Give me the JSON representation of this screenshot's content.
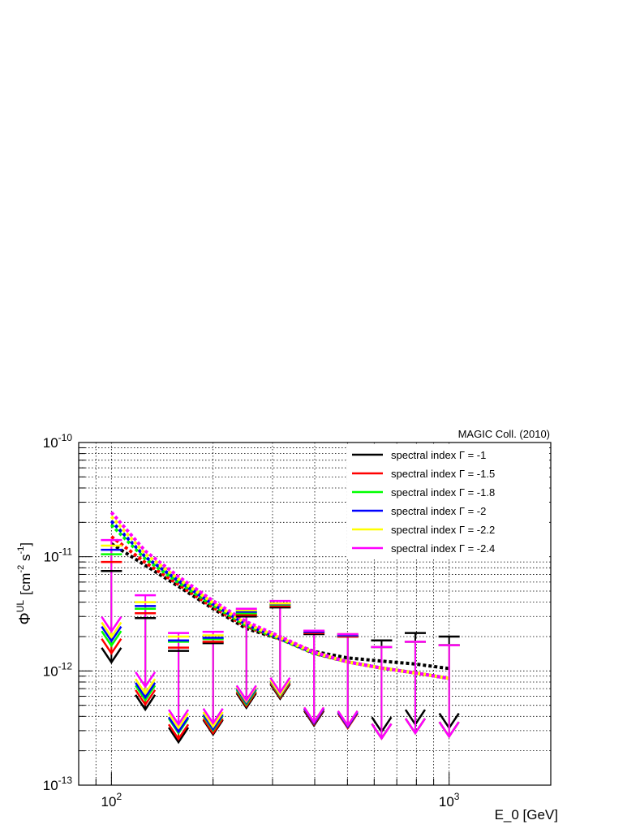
{
  "chart_data": {
    "type": "scatter",
    "annotation": "MAGIC Coll. (2010)",
    "xlabel": "E_0  [GeV]",
    "ylabel": "Φ^UL  [cm^-2 s^-1]",
    "ylabel_parts": {
      "symbol": "Φ",
      "sup": "UL",
      "unit_open": "[cm",
      "exp1": "-2",
      "unit_mid": " s",
      "exp2": "-1",
      "unit_close": "]"
    },
    "x_scale": "log",
    "y_scale": "log",
    "xlim": [
      80,
      2000
    ],
    "ylim": [
      1e-13,
      1e-10
    ],
    "x_ticks": [
      {
        "base": "10",
        "exp": "2",
        "value": 100
      },
      {
        "base": "10",
        "exp": "3",
        "value": 1000
      }
    ],
    "y_ticks": [
      {
        "base": "10",
        "exp": "-10",
        "value": 1e-10
      },
      {
        "base": "10",
        "exp": "-11",
        "value": 1e-11
      },
      {
        "base": "10",
        "exp": "-12",
        "value": 1e-12
      },
      {
        "base": "10",
        "exp": "-13",
        "value": 1e-13
      }
    ],
    "grid": true,
    "legend_position": "top-right",
    "energies": [
      100,
      126,
      158,
      200,
      251,
      316,
      398,
      501,
      631,
      794,
      1000
    ],
    "series": [
      {
        "name": "spectral index Γ = -1",
        "color": "#000000",
        "upper_limits": [
          7.5e-12,
          2.9e-12,
          1.5e-12,
          1.75e-12,
          3e-12,
          3.6e-12,
          2.1e-12,
          2e-12,
          1.85e-12,
          2.15e-12,
          2e-12
        ],
        "curve": [
          1.3e-11,
          8.4e-12,
          5.5e-12,
          3.5e-12,
          2.35e-12,
          1.9e-12,
          1.48e-12,
          1.3e-12,
          1.22e-12,
          1.15e-12,
          1.05e-12
        ]
      },
      {
        "name": "spectral index Γ = -1.5",
        "color": "#ff0000",
        "upper_limits": [
          9e-12,
          3.2e-12,
          1.6e-12,
          1.8e-12,
          3.1e-12,
          3.7e-12,
          2.15e-12,
          2e-12,
          1.62e-12,
          1.8e-12,
          1.68e-12
        ],
        "curve": [
          1.5e-11,
          8.9e-12,
          5.7e-12,
          3.6e-12,
          2.45e-12,
          1.9e-12,
          1.42e-12,
          1.2e-12,
          1.06e-12,
          9.6e-13,
          8.6e-13
        ]
      },
      {
        "name": "spectral index Γ = -1.8",
        "color": "#00ff00",
        "upper_limits": [
          1.05e-11,
          3.5e-12,
          1.8e-12,
          1.9e-12,
          3.2e-12,
          3.8e-12,
          2.2e-12,
          2.05e-12,
          1.62e-12,
          1.8e-12,
          1.68e-12
        ],
        "curve": [
          1.9e-11,
          9.6e-12,
          5.95e-12,
          3.75e-12,
          2.5e-12,
          1.9e-12,
          1.43e-12,
          1.2e-12,
          1.06e-12,
          9.6e-13,
          8.6e-13
        ]
      },
      {
        "name": "spectral index Γ = -2",
        "color": "#0000ff",
        "upper_limits": [
          1.15e-11,
          3.7e-12,
          1.85e-12,
          1.95e-12,
          3.3e-12,
          3.85e-12,
          2.2e-12,
          2.05e-12,
          1.62e-12,
          1.8e-12,
          1.68e-12
        ],
        "curve": [
          2.05e-11,
          1e-11,
          6.15e-12,
          3.85e-12,
          2.55e-12,
          1.93e-12,
          1.44e-12,
          1.2e-12,
          1.06e-12,
          9.6e-13,
          8.6e-13
        ]
      },
      {
        "name": "spectral index Γ = -2.2",
        "color": "#ffff00",
        "upper_limits": [
          1.25e-11,
          4e-12,
          2e-12,
          2.05e-12,
          3.4e-12,
          3.9e-12,
          2.25e-12,
          2.1e-12,
          1.62e-12,
          1.8e-12,
          1.68e-12
        ],
        "curve": [
          2.25e-11,
          1.06e-11,
          6.4e-12,
          3.95e-12,
          2.6e-12,
          1.95e-12,
          1.45e-12,
          1.2e-12,
          1.06e-12,
          9.6e-13,
          8.6e-13
        ]
      },
      {
        "name": "spectral index Γ = -2.4",
        "color": "#ff00ff",
        "upper_limits": [
          1.4e-11,
          4.6e-12,
          2.15e-12,
          2.2e-12,
          3.5e-12,
          4.1e-12,
          2.25e-12,
          2.1e-12,
          1.62e-12,
          1.8e-12,
          1.68e-12
        ],
        "curve": [
          2.45e-11,
          1.12e-11,
          6.7e-12,
          4.1e-12,
          2.7e-12,
          2e-12,
          1.46e-12,
          1.2e-12,
          1.06e-12,
          9.6e-13,
          8.6e-13
        ]
      }
    ]
  }
}
